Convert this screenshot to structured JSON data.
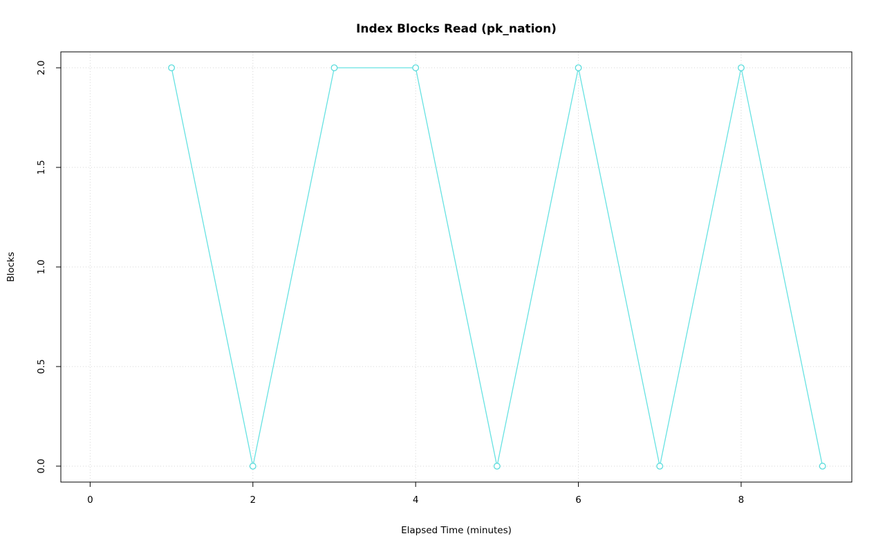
{
  "chart_data": {
    "type": "line",
    "title": "Index Blocks Read (pk_nation)",
    "xlabel": "Elapsed Time (minutes)",
    "ylabel": "Blocks",
    "x": [
      1,
      2,
      3,
      4,
      5,
      6,
      7,
      8,
      9
    ],
    "y": [
      2,
      0,
      2,
      2,
      0,
      2,
      0,
      2,
      0
    ],
    "xlim": [
      -0.36,
      9.36
    ],
    "ylim": [
      -0.08,
      2.08
    ],
    "xticks": [
      0,
      2,
      4,
      6,
      8
    ],
    "xtick_labels": [
      "0",
      "2",
      "4",
      "6",
      "8"
    ],
    "yticks": [
      0.0,
      0.5,
      1.0,
      1.5,
      2.0
    ],
    "ytick_labels": [
      "0.0",
      "0.5",
      "1.0",
      "1.5",
      "2.0"
    ],
    "grid": true,
    "legend": "none",
    "marker": "open-circle",
    "line_color": "#66E2E2",
    "marker_color": "#5ADCDC",
    "grid_color": "#D4D4D4",
    "box_color": "#000000",
    "background_color": "#FFFFFF"
  }
}
